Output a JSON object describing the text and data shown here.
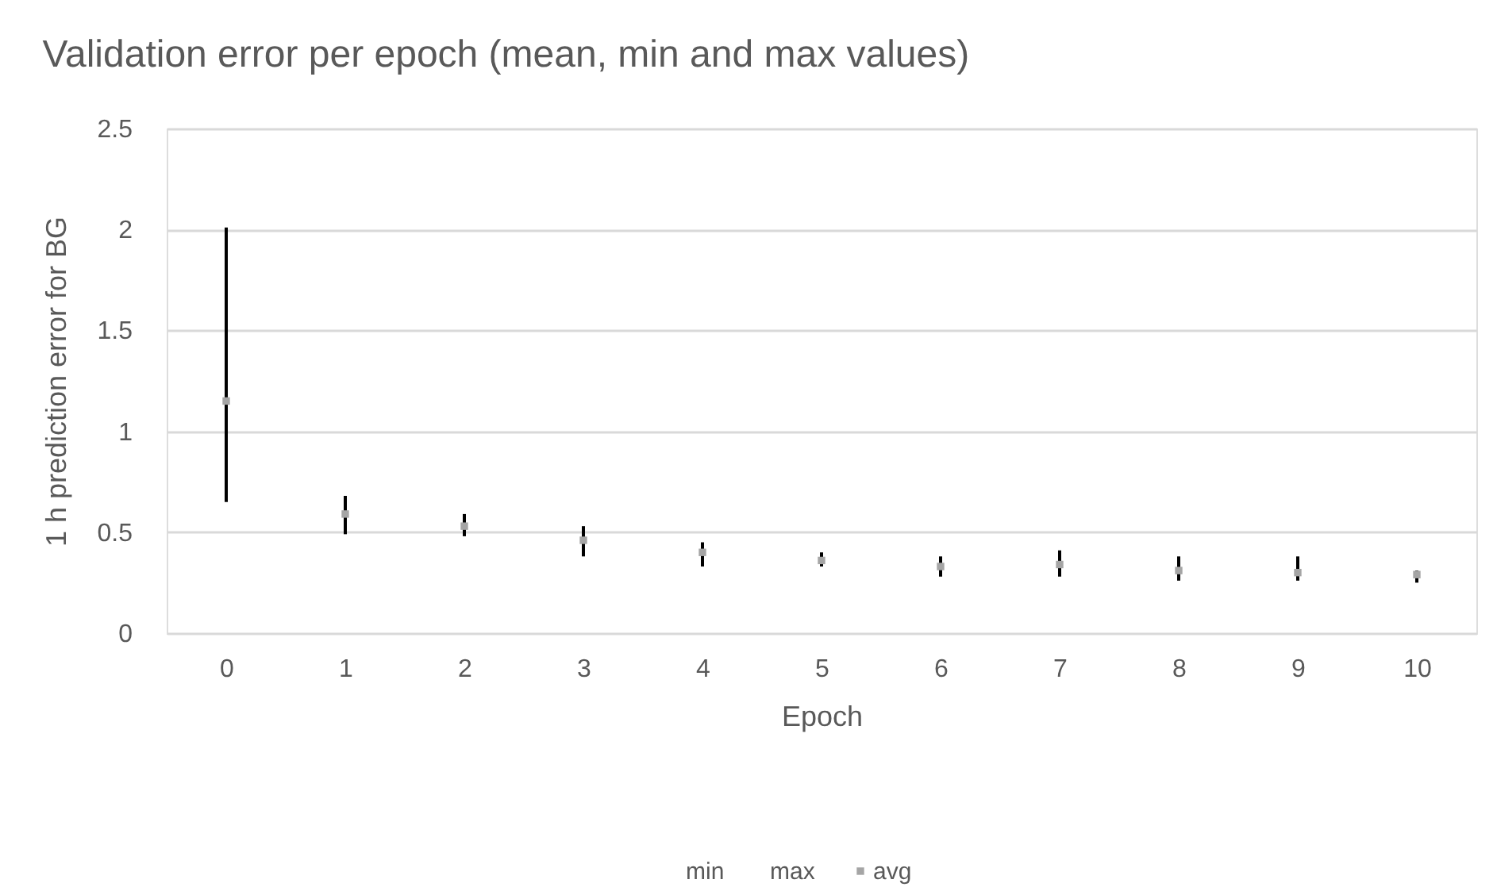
{
  "chart_data": {
    "type": "scatter",
    "title": "Validation error per epoch (mean, min and max values)",
    "xlabel": "Epoch",
    "ylabel": "1 h prediction error for BG",
    "categories": [
      "0",
      "1",
      "2",
      "3",
      "4",
      "5",
      "6",
      "7",
      "8",
      "9",
      "10"
    ],
    "series": [
      {
        "name": "avg",
        "color": "#a5a5a5",
        "marker": "square",
        "values": [
          1.15,
          0.59,
          0.53,
          0.46,
          0.4,
          0.36,
          0.33,
          0.34,
          0.31,
          0.3,
          0.29
        ],
        "errors": [
          [
            0.65,
            2.01
          ],
          [
            0.49,
            0.68
          ],
          [
            0.48,
            0.59
          ],
          [
            0.38,
            0.53
          ],
          [
            0.33,
            0.45
          ],
          [
            0.33,
            0.4
          ],
          [
            0.28,
            0.38
          ],
          [
            0.28,
            0.41
          ],
          [
            0.26,
            0.38
          ],
          [
            0.26,
            0.38
          ],
          [
            0.25,
            0.31
          ]
        ]
      }
    ],
    "annotations": [
      "min",
      "max"
    ],
    "ylim": [
      0,
      2.5
    ],
    "yticks": [
      0,
      0.5,
      1,
      1.5,
      2,
      2.5
    ],
    "grid": "y",
    "legend": "bottom"
  }
}
